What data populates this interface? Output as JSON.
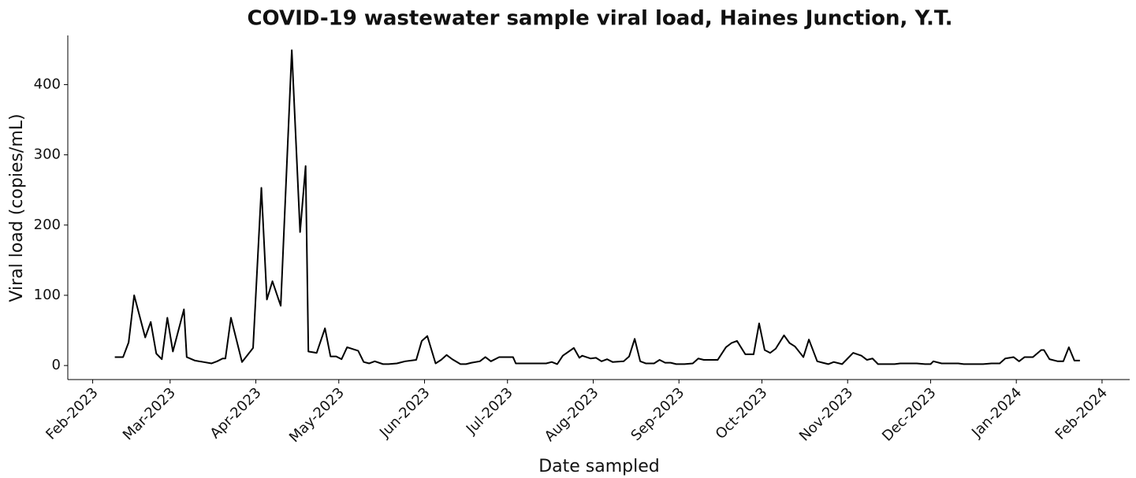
{
  "chart_data": {
    "type": "line",
    "title": "COVID-19 wastewater sample viral load, Haines Junction, Y.T.",
    "xlabel": "Date sampled",
    "ylabel": "Viral load (copies/mL)",
    "color": "#000000",
    "x": [
      "2023-02-09",
      "2023-02-12",
      "2023-02-14",
      "2023-02-16",
      "2023-02-20",
      "2023-02-22",
      "2023-02-24",
      "2023-02-26",
      "2023-02-28",
      "2023-03-02",
      "2023-03-06",
      "2023-03-07",
      "2023-03-10",
      "2023-03-13",
      "2023-03-16",
      "2023-03-18",
      "2023-03-20",
      "2023-03-21",
      "2023-03-23",
      "2023-03-27",
      "2023-03-31",
      "2023-04-03",
      "2023-04-05",
      "2023-04-07",
      "2023-04-10",
      "2023-04-14",
      "2023-04-17",
      "2023-04-19",
      "2023-04-20",
      "2023-04-23",
      "2023-04-26",
      "2023-04-28",
      "2023-04-30",
      "2023-05-02",
      "2023-05-04",
      "2023-05-08",
      "2023-05-10",
      "2023-05-12",
      "2023-05-14",
      "2023-05-17",
      "2023-05-19",
      "2023-05-22",
      "2023-05-25",
      "2023-05-29",
      "2023-05-31",
      "2023-06-02",
      "2023-06-05",
      "2023-06-07",
      "2023-06-09",
      "2023-06-11",
      "2023-06-14",
      "2023-06-16",
      "2023-06-18",
      "2023-06-21",
      "2023-06-23",
      "2023-06-25",
      "2023-06-28",
      "2023-07-01",
      "2023-07-03",
      "2023-07-04",
      "2023-07-08",
      "2023-07-11",
      "2023-07-15",
      "2023-07-17",
      "2023-07-19",
      "2023-07-21",
      "2023-07-25",
      "2023-07-27",
      "2023-07-28",
      "2023-07-31",
      "2023-08-02",
      "2023-08-04",
      "2023-08-06",
      "2023-08-08",
      "2023-08-12",
      "2023-08-14",
      "2023-08-16",
      "2023-08-18",
      "2023-08-20",
      "2023-08-23",
      "2023-08-25",
      "2023-08-27",
      "2023-08-29",
      "2023-08-31",
      "2023-09-03",
      "2023-09-06",
      "2023-09-08",
      "2023-09-10",
      "2023-09-12",
      "2023-09-15",
      "2023-09-18",
      "2023-09-20",
      "2023-09-22",
      "2023-09-25",
      "2023-09-28",
      "2023-09-30",
      "2023-10-02",
      "2023-10-04",
      "2023-10-06",
      "2023-10-09",
      "2023-10-11",
      "2023-10-13",
      "2023-10-16",
      "2023-10-18",
      "2023-10-21",
      "2023-10-23",
      "2023-10-25",
      "2023-10-27",
      "2023-10-30",
      "2023-11-01",
      "2023-11-03",
      "2023-11-06",
      "2023-11-08",
      "2023-11-10",
      "2023-11-12",
      "2023-11-15",
      "2023-11-18",
      "2023-11-20",
      "2023-11-24",
      "2023-11-26",
      "2023-11-29",
      "2023-12-01",
      "2023-12-02",
      "2023-12-05",
      "2023-12-08",
      "2023-12-11",
      "2023-12-13",
      "2023-12-17",
      "2023-12-20",
      "2023-12-23",
      "2023-12-26",
      "2023-12-28",
      "2023-12-31",
      "2024-01-02",
      "2024-01-04",
      "2024-01-07",
      "2024-01-10",
      "2024-01-11",
      "2024-01-13",
      "2024-01-16",
      "2024-01-18",
      "2024-01-20",
      "2024-01-22",
      "2024-01-24"
    ],
    "values": [
      12,
      12,
      33,
      100,
      40,
      62,
      17,
      9,
      68,
      20,
      80,
      12,
      7,
      5,
      3,
      6,
      10,
      10,
      68,
      5,
      25,
      253,
      94,
      120,
      85,
      449,
      190,
      284,
      20,
      18,
      53,
      13,
      13,
      9,
      26,
      21,
      5,
      3,
      6,
      2,
      2,
      3,
      6,
      8,
      35,
      42,
      3,
      8,
      15,
      9,
      2,
      2,
      4,
      6,
      12,
      6,
      12,
      12,
      12,
      3,
      3,
      3,
      3,
      5,
      2,
      14,
      25,
      11,
      14,
      10,
      11,
      6,
      9,
      5,
      6,
      13,
      38,
      6,
      3,
      3,
      8,
      4,
      4,
      2,
      2,
      3,
      10,
      8,
      8,
      8,
      26,
      32,
      35,
      16,
      16,
      60,
      22,
      18,
      24,
      43,
      32,
      27,
      12,
      37,
      6,
      4,
      2,
      5,
      2,
      10,
      18,
      14,
      8,
      10,
      2,
      2,
      2,
      3,
      3,
      3,
      2,
      2,
      6,
      3,
      3,
      3,
      2,
      2,
      2,
      3,
      3,
      10,
      12,
      6,
      12,
      12,
      22,
      22,
      9,
      6,
      6,
      26,
      7,
      7
    ],
    "xlim": [
      "2023-01-23",
      "2024-02-11"
    ],
    "ylim": [
      -20,
      470
    ],
    "xticks": [
      {
        "value": "2023-02-01",
        "label": "Feb-2023"
      },
      {
        "value": "2023-03-01",
        "label": "Mar-2023"
      },
      {
        "value": "2023-04-01",
        "label": "Apr-2023"
      },
      {
        "value": "2023-05-01",
        "label": "May-2023"
      },
      {
        "value": "2023-06-01",
        "label": "Jun-2023"
      },
      {
        "value": "2023-07-01",
        "label": "Jul-2023"
      },
      {
        "value": "2023-08-01",
        "label": "Aug-2023"
      },
      {
        "value": "2023-09-01",
        "label": "Sep-2023"
      },
      {
        "value": "2023-10-01",
        "label": "Oct-2023"
      },
      {
        "value": "2023-11-01",
        "label": "Nov-2023"
      },
      {
        "value": "2023-12-01",
        "label": "Dec-2023"
      },
      {
        "value": "2024-01-01",
        "label": "Jan-2024"
      },
      {
        "value": "2024-02-01",
        "label": "Feb-2024"
      }
    ],
    "yticks": [
      0,
      100,
      200,
      300,
      400
    ]
  }
}
